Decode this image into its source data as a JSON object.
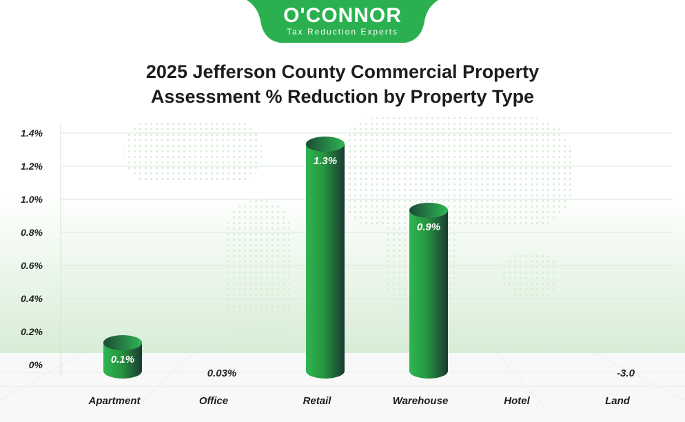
{
  "logo": {
    "name": "O'CONNOR",
    "tagline": "Tax Reduction Experts",
    "color": "#2bb04f"
  },
  "chart_data": {
    "type": "bar",
    "title_line1": "2025 Jefferson County Commercial Property",
    "title_line2": "Assessment % Reduction by Property Type",
    "categories": [
      "Apartment",
      "Office",
      "Retail",
      "Warehouse",
      "Hotel",
      "Land"
    ],
    "values": [
      0.1,
      0.03,
      1.3,
      0.9,
      null,
      -3.0
    ],
    "data_labels": [
      "0.1%",
      "0.03%",
      "1.3%",
      "0.9%",
      "",
      "-3.0"
    ],
    "yticks": [
      "0%",
      "0.2%",
      "0.4%",
      "0.6%",
      "0.8%",
      "1.0%",
      "1.2%",
      "1.4%"
    ],
    "ylim": [
      0,
      1.4
    ],
    "grid": true,
    "bar_style": "3d-cylinder",
    "colors": {
      "bar_light": "#2fb552",
      "bar_dark": "#1a3a32",
      "grid": "#d8e8da",
      "background_tint": "#dff0df"
    }
  }
}
